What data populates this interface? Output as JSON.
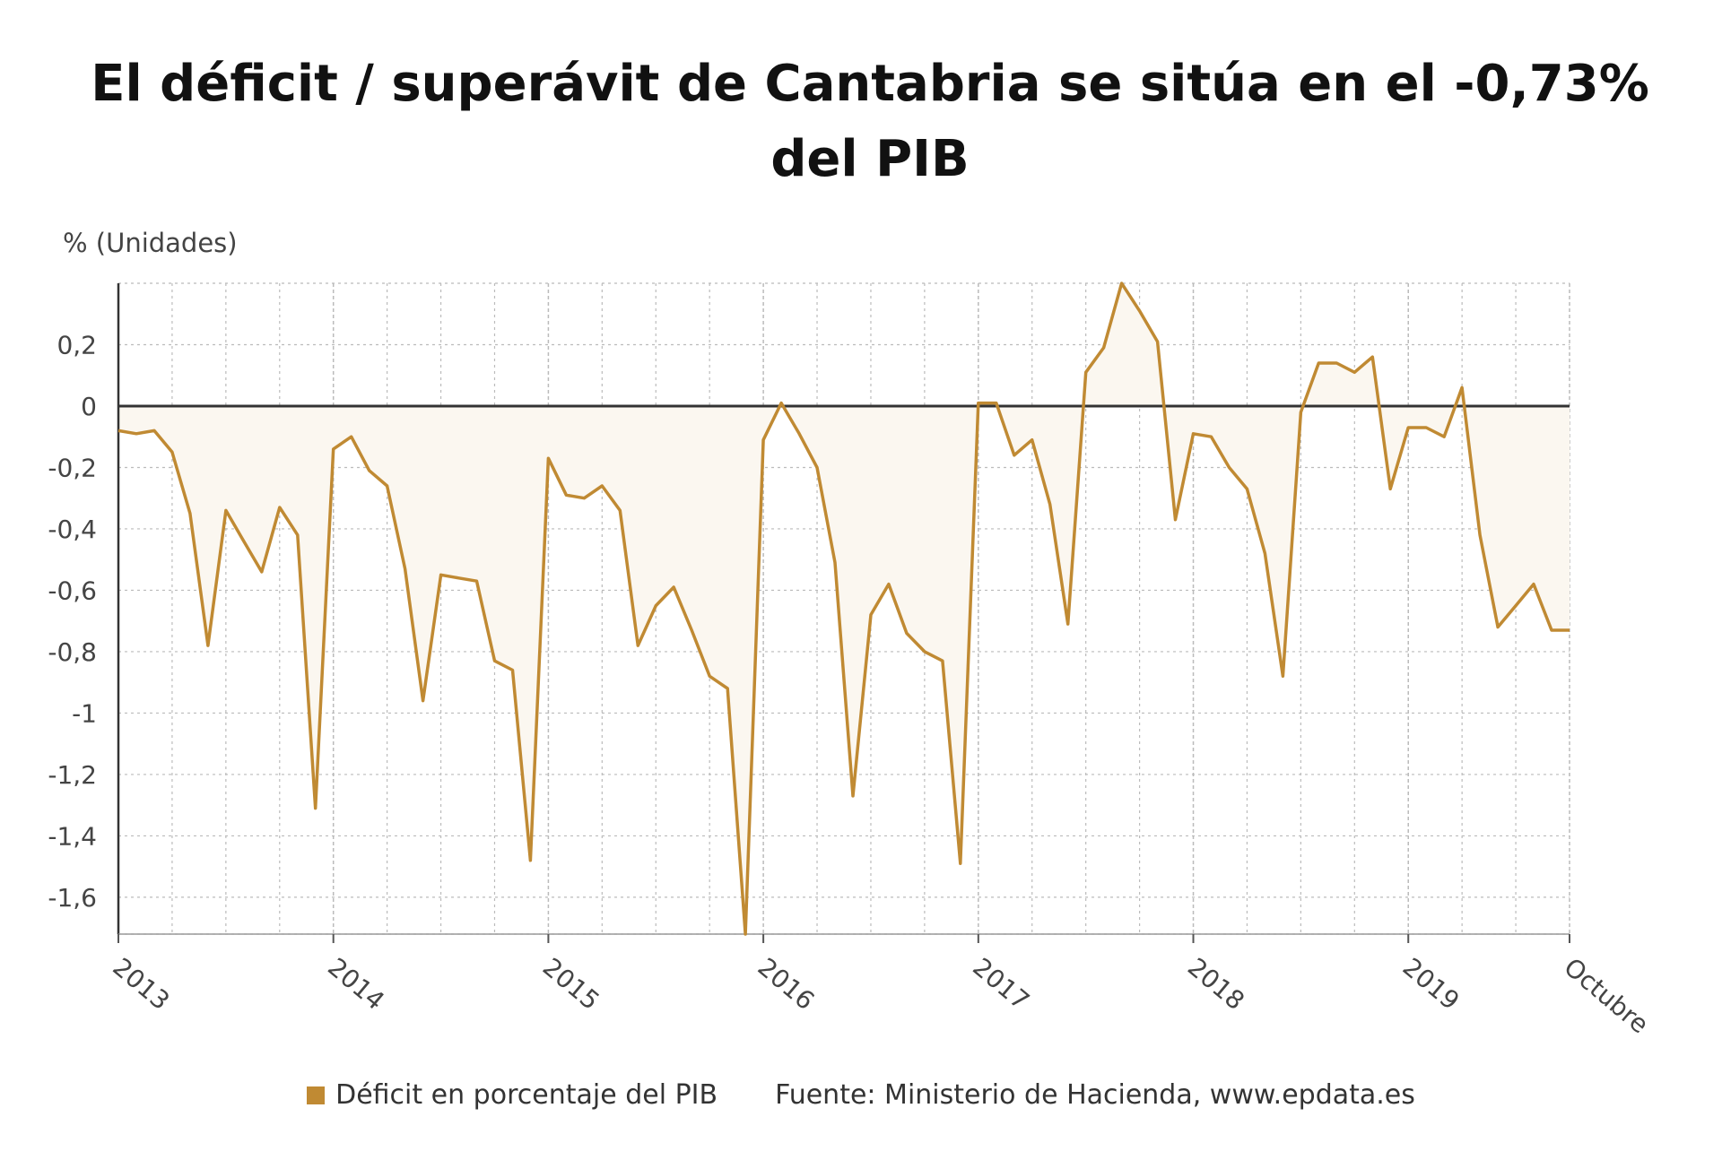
{
  "title": "El déficit / superávit de Cantabria se sitúa en el -0,73% del PIB",
  "y_unit": "% (Unidades)",
  "source": "Fuente: Ministerio de Hacienda, www.epdata.es",
  "colors": {
    "series": "#C08A33",
    "fill": "#FBF7F0",
    "grid": "#BBBBBB",
    "zero_line": "#333333",
    "text": "#444444"
  },
  "chart_data": {
    "type": "line",
    "title": "El déficit / superávit de Cantabria se sitúa en el -0,73% del PIB",
    "ylabel": "% (Unidades)",
    "ylim": [
      -1.72,
      0.4
    ],
    "yticks": [
      0.2,
      0,
      -0.2,
      -0.4,
      -0.6,
      -0.8,
      -1,
      -1.2,
      -1.4,
      -1.6
    ],
    "ytick_labels": [
      "0,2",
      "0",
      "-0,2",
      "-0,4",
      "-0,6",
      "-0,8",
      "-1",
      "-1,2",
      "-1,4",
      "-1,6"
    ],
    "xlim": [
      0,
      81
    ],
    "xticks": [
      0,
      12,
      24,
      36,
      48,
      60,
      72,
      81
    ],
    "xtick_labels": [
      "2013",
      "2014",
      "2015",
      "2016",
      "2017",
      "2018",
      "2019",
      "Octubre"
    ],
    "grid": true,
    "legend_position": "bottom",
    "series": [
      {
        "name": "Déficit en porcentaje del PIB",
        "x": [
          0,
          1,
          2,
          3,
          4,
          5,
          6,
          7,
          8,
          9,
          10,
          11,
          12,
          13,
          14,
          15,
          16,
          17,
          18,
          19,
          20,
          21,
          22,
          23,
          24,
          25,
          26,
          27,
          28,
          29,
          30,
          31,
          32,
          33,
          34,
          35,
          36,
          37,
          38,
          39,
          40,
          41,
          42,
          43,
          44,
          45,
          46,
          47,
          48,
          49,
          50,
          51,
          52,
          53,
          54,
          55,
          56,
          57,
          58,
          59,
          60,
          61,
          62,
          63,
          64,
          65,
          66,
          67,
          68,
          69,
          70,
          71,
          72,
          73,
          74,
          75,
          76,
          77,
          78,
          79,
          80,
          81
        ],
        "values": [
          -0.08,
          -0.09,
          -0.08,
          -0.15,
          -0.35,
          -0.78,
          -0.34,
          -0.44,
          -0.54,
          -0.33,
          -0.42,
          -1.31,
          -0.14,
          -0.1,
          -0.21,
          -0.26,
          -0.53,
          -0.96,
          -0.55,
          -0.56,
          -0.57,
          -0.83,
          -0.86,
          -1.48,
          -0.17,
          -0.29,
          -0.3,
          -0.26,
          -0.34,
          -0.78,
          -0.65,
          -0.59,
          -0.73,
          -0.88,
          -0.92,
          -1.72,
          -0.11,
          0.01,
          -0.09,
          -0.2,
          -0.51,
          -1.27,
          -0.68,
          -0.58,
          -0.74,
          -0.8,
          -0.83,
          -1.49,
          0.01,
          0.01,
          -0.16,
          -0.11,
          -0.32,
          -0.71,
          0.11,
          0.19,
          0.4,
          0.31,
          0.21,
          -0.37,
          -0.09,
          -0.1,
          -0.2,
          -0.27,
          -0.48,
          -0.88,
          -0.02,
          0.14,
          0.14,
          0.11,
          0.16,
          -0.27,
          -0.07,
          -0.07,
          -0.1,
          0.06,
          -0.42,
          -0.72,
          -0.65,
          -0.58,
          -0.73,
          -0.73
        ]
      }
    ]
  }
}
